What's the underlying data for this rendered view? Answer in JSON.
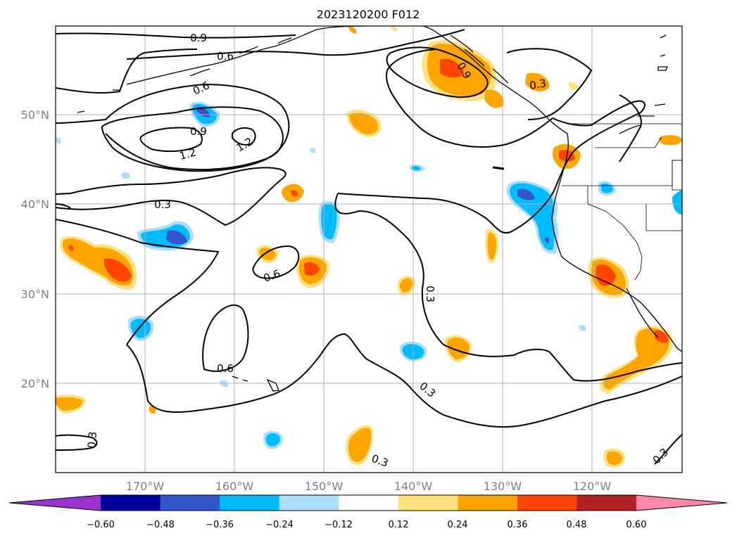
{
  "title": "2023120200 F012",
  "latitude_labels": [
    "50°N",
    "40°N",
    "30°N",
    "20°N"
  ],
  "longitude_labels": [
    "170°W",
    "160°W",
    "150°W",
    "140°W",
    "130°W",
    "120°W"
  ],
  "colorbar": {
    "tick_labels": [
      "−0.60",
      "−0.48",
      "−0.36",
      "−0.24",
      "−0.12",
      "0.12",
      "0.24",
      "0.36",
      "0.48",
      "0.60"
    ],
    "colors": [
      "#9933cc",
      "#000099",
      "#3355cc",
      "#00bbff",
      "#aaddff",
      "#ffffff",
      "#ffe27f",
      "#ffa500",
      "#ff4500",
      "#b22222",
      "#ff88aa"
    ]
  },
  "contour_labels": [
    "0.9",
    "0.6",
    "0.6",
    "0.9",
    "1.2",
    "1.2",
    "0.9",
    "0.3",
    "0.3",
    "0.6",
    "0.3",
    "0.6",
    "0.3",
    "0.3",
    "0.3",
    "0.3"
  ],
  "colors": {
    "contour": "#000000",
    "grid": "#b0b0b0",
    "coast": "#000000",
    "orange": "#ffa500",
    "red": "#ff4500",
    "yellow": "#ffe27f",
    "cyan": "#00bbff",
    "lightblue": "#aaddff",
    "blue": "#3355cc"
  }
}
